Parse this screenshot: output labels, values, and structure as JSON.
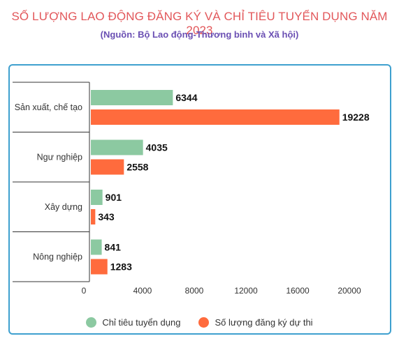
{
  "title": "SỐ LƯỢNG LAO ĐỘNG ĐĂNG KÝ VÀ CHỈ TIÊU TUYỂN DỤNG NĂM 2023",
  "subtitle": "(Nguồn: Bộ Lao động-Thương binh và Xã hội)",
  "colors": {
    "series1": "#8cc9a1",
    "series2": "#ff6b3d",
    "border": "#3ea0cf",
    "title": "#e2575a",
    "subtitle": "#6a4fb3"
  },
  "chart_data": {
    "type": "bar",
    "orientation": "horizontal",
    "categories": [
      "Sản xuất, chế tạo",
      "Ngư nghiệp",
      "Xây dựng",
      "Nông nghiệp"
    ],
    "series": [
      {
        "name": "Chỉ tiêu tuyển dụng",
        "values": [
          6344,
          4035,
          901,
          841
        ]
      },
      {
        "name": "Số lượng đăng ký dự thi",
        "values": [
          19228,
          2558,
          343,
          1283
        ]
      }
    ],
    "xticks": [
      0,
      4000,
      8000,
      12000,
      16000,
      20000
    ],
    "xlim": [
      0,
      22000
    ],
    "legend_position": "bottom",
    "grid": false
  }
}
